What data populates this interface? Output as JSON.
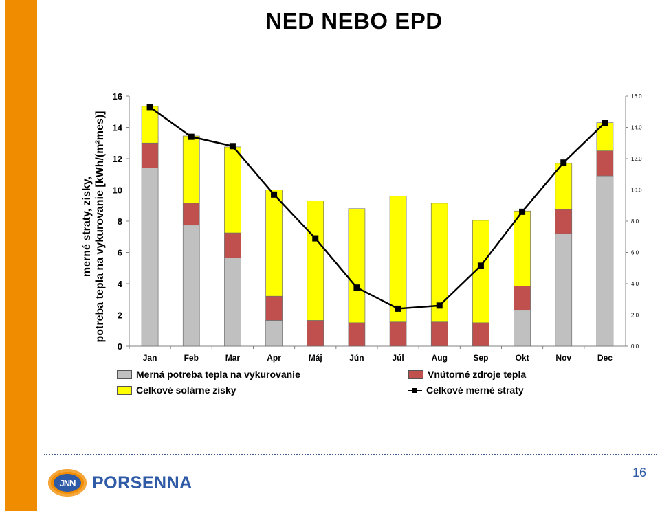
{
  "slide": {
    "title": "NED NEBO EPD",
    "page_number": "16",
    "logo_text": "PORSENNA",
    "logo_mark": "JNN",
    "accent_color": "#f08c00",
    "brand_color": "#2e5aa6"
  },
  "chart_data": {
    "type": "bar",
    "stacked": true,
    "ylabel_line1": "merné straty, zisky,",
    "ylabel_line2": "potreba tepla na vykurovanie [kWh/(m²mes)]",
    "ylim": [
      0,
      16
    ],
    "yticks_left": [
      "0",
      "2",
      "4",
      "6",
      "8",
      "10",
      "12",
      "14",
      "16"
    ],
    "yticks_right": [
      "0.0",
      "2.0",
      "4.0",
      "6.0",
      "8.0",
      "10.0",
      "12.0",
      "14.0",
      "16.0"
    ],
    "categories": [
      "Jan",
      "Feb",
      "Mar",
      "Apr",
      "Máj",
      "Jún",
      "Júl",
      "Aug",
      "Sep",
      "Okt",
      "Nov",
      "Dec"
    ],
    "series": [
      {
        "name": "Merná potreba tepla na vykurovanie",
        "kind": "bar",
        "color": "#c0c0c0",
        "values": [
          11.4,
          7.75,
          5.65,
          1.65,
          0,
          0,
          0,
          0,
          0,
          2.3,
          7.2,
          10.9
        ]
      },
      {
        "name": "Vnútorné zdroje tepla",
        "kind": "bar",
        "color": "#c0504d",
        "values": [
          1.6,
          1.4,
          1.6,
          1.55,
          1.65,
          1.5,
          1.55,
          1.55,
          1.5,
          1.55,
          1.55,
          1.6
        ]
      },
      {
        "name": "Celkové solárne zisky",
        "kind": "bar",
        "color": "#ffff00",
        "values": [
          2.35,
          4.3,
          5.5,
          6.8,
          7.65,
          7.3,
          8.05,
          7.6,
          6.55,
          4.8,
          2.95,
          1.8
        ]
      },
      {
        "name": "Celkové merné straty",
        "kind": "line",
        "color": "#000000",
        "values": [
          15.3,
          13.4,
          12.8,
          9.7,
          6.9,
          3.75,
          2.4,
          2.6,
          5.15,
          8.6,
          11.75,
          14.3
        ]
      }
    ],
    "legend_position": "bottom",
    "grid": false
  }
}
